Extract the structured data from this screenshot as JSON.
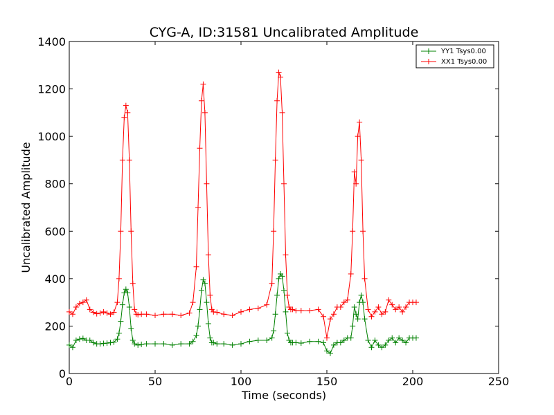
{
  "chart_data": {
    "type": "line",
    "title": "CYG-A, ID:31581 Uncalibrated Amplitude",
    "xlabel": "Time (seconds)",
    "ylabel": "Uncalibrated Amplitude",
    "xlim": [
      0,
      250
    ],
    "ylim": [
      0,
      1400
    ],
    "xticks": [
      "0",
      "50",
      "100",
      "150",
      "200",
      "250"
    ],
    "yticks": [
      "0",
      "200",
      "400",
      "600",
      "800",
      "1000",
      "1200",
      "1400"
    ],
    "grid": false,
    "legend_position": "top-right",
    "marker": "+",
    "series": [
      {
        "name": "YY1 Tsys0.00",
        "color": "#008000",
        "x": [
          0,
          2,
          4,
          6,
          8,
          10,
          12,
          14,
          16,
          18,
          20,
          22,
          24,
          26,
          28,
          29,
          30,
          31,
          32,
          33,
          34,
          35,
          36,
          37,
          38,
          40,
          42,
          45,
          50,
          55,
          60,
          65,
          70,
          72,
          74,
          75,
          76,
          77,
          78,
          79,
          80,
          81,
          82,
          83,
          84,
          86,
          90,
          95,
          100,
          105,
          110,
          115,
          118,
          119,
          120,
          121,
          122,
          123,
          124,
          125,
          126,
          127,
          128,
          129,
          130,
          132,
          135,
          140,
          145,
          148,
          150,
          152,
          154,
          156,
          158,
          160,
          162,
          164,
          165,
          166,
          167,
          168,
          169,
          170,
          171,
          172,
          174,
          176,
          178,
          180,
          182,
          184,
          186,
          188,
          190,
          192,
          194,
          196,
          198,
          200,
          202
        ],
        "y": [
          120,
          110,
          140,
          145,
          148,
          140,
          140,
          130,
          125,
          125,
          127,
          128,
          130,
          132,
          145,
          170,
          220,
          290,
          340,
          355,
          340,
          280,
          190,
          140,
          125,
          120,
          123,
          125,
          125,
          125,
          120,
          125,
          125,
          135,
          160,
          200,
          270,
          350,
          395,
          380,
          300,
          210,
          150,
          130,
          130,
          125,
          125,
          120,
          125,
          135,
          140,
          140,
          150,
          180,
          250,
          330,
          400,
          420,
          410,
          350,
          260,
          170,
          140,
          130,
          130,
          130,
          128,
          135,
          135,
          130,
          95,
          85,
          120,
          130,
          130,
          140,
          150,
          150,
          200,
          280,
          250,
          230,
          300,
          330,
          300,
          230,
          140,
          110,
          140,
          120,
          110,
          120,
          140,
          150,
          130,
          150,
          140,
          130,
          150,
          150,
          150
        ]
      },
      {
        "name": "XX1 Tsys0.00",
        "color": "#ff0000",
        "x": [
          0,
          2,
          4,
          6,
          8,
          10,
          12,
          14,
          16,
          18,
          20,
          22,
          24,
          26,
          28,
          29,
          30,
          31,
          32,
          33,
          34,
          35,
          36,
          37,
          38,
          39,
          40,
          42,
          45,
          50,
          55,
          60,
          65,
          70,
          72,
          74,
          75,
          76,
          77,
          78,
          79,
          80,
          81,
          82,
          83,
          84,
          86,
          90,
          95,
          100,
          105,
          110,
          115,
          118,
          119,
          120,
          121,
          122,
          123,
          124,
          125,
          126,
          127,
          128,
          129,
          130,
          132,
          135,
          140,
          145,
          148,
          150,
          152,
          154,
          156,
          158,
          160,
          162,
          164,
          165,
          166,
          167,
          168,
          169,
          170,
          171,
          172,
          174,
          176,
          178,
          180,
          182,
          184,
          186,
          188,
          190,
          192,
          194,
          196,
          198,
          200,
          202
        ],
        "y": [
          260,
          250,
          280,
          295,
          300,
          310,
          270,
          258,
          252,
          255,
          260,
          255,
          250,
          258,
          300,
          400,
          600,
          900,
          1080,
          1130,
          1100,
          900,
          600,
          380,
          270,
          250,
          248,
          250,
          250,
          245,
          250,
          250,
          245,
          255,
          300,
          450,
          700,
          950,
          1150,
          1220,
          1100,
          800,
          500,
          330,
          270,
          260,
          258,
          250,
          245,
          260,
          270,
          275,
          290,
          380,
          600,
          900,
          1150,
          1270,
          1250,
          1100,
          800,
          500,
          330,
          280,
          270,
          270,
          265,
          265,
          265,
          270,
          240,
          150,
          230,
          250,
          280,
          280,
          300,
          310,
          420,
          600,
          850,
          800,
          1000,
          1060,
          900,
          600,
          400,
          270,
          240,
          260,
          280,
          250,
          260,
          310,
          290,
          270,
          280,
          260,
          280,
          300,
          300,
          300
        ]
      }
    ]
  }
}
